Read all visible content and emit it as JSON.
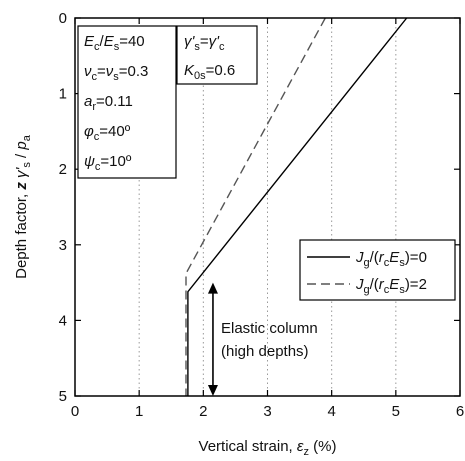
{
  "chart_data": {
    "type": "line",
    "x_axis": {
      "label_prefix": "Vertical strain, ",
      "label_symbol": "ε",
      "label_symbol_sub": "z",
      "label_suffix": " (%)",
      "range": [
        0,
        6
      ],
      "ticks": [
        "0",
        "1",
        "2",
        "3",
        "4",
        "5",
        "6"
      ],
      "grid": "vertical dotted"
    },
    "y_axis": {
      "label_prefix": "Depth factor, ",
      "label_z": "z",
      "label_gamma": "γ'",
      "label_gamma_sub": "s",
      "label_slash": " / ",
      "label_p": "p",
      "label_p_sub": "a",
      "range": [
        0,
        5
      ],
      "inverted": true,
      "ticks": [
        "0",
        "1",
        "2",
        "3",
        "4",
        "5"
      ]
    },
    "series": [
      {
        "legend_main": "J",
        "legend_sub1": "g",
        "legend_mid": "/(",
        "legend_r": "r",
        "legend_sub2": "c",
        "legend_E": "E",
        "legend_sub3": "s",
        "legend_value": ")=0",
        "style": "solid",
        "color": "#000000",
        "points": [
          [
            5.17,
            0
          ],
          [
            1.76,
            3.62
          ],
          [
            1.76,
            5
          ]
        ]
      },
      {
        "legend_main": "J",
        "legend_sub1": "g",
        "legend_mid": "/(",
        "legend_r": "r",
        "legend_sub2": "c",
        "legend_E": "E",
        "legend_sub3": "s",
        "legend_value": ")=2",
        "style": "dashed",
        "color": "#555555",
        "points": [
          [
            3.9,
            0
          ],
          [
            1.73,
            3.38
          ],
          [
            1.73,
            5
          ]
        ]
      }
    ],
    "parameters_box": [
      {
        "sym": "E",
        "sub": "c",
        "mid": "/",
        "sym2": "E",
        "sub2": "s",
        "value": "=40"
      },
      {
        "sym": "ν",
        "sub": "c",
        "mid": "=",
        "sym2": "ν",
        "sub2": "s",
        "value": "=0.3"
      },
      {
        "sym": "a",
        "sub": "r",
        "mid": "",
        "sym2": "",
        "sub2": "",
        "value": "=0.11"
      },
      {
        "sym": "φ",
        "sub": "c",
        "mid": "",
        "sym2": "",
        "sub2": "",
        "value": "=40º"
      },
      {
        "sym": "ψ",
        "sub": "c",
        "mid": "",
        "sym2": "",
        "sub2": "",
        "value": "=10º"
      }
    ],
    "soil_box": [
      {
        "sym": "γ'",
        "sub": "s",
        "mid": "=",
        "sym2": "γ'",
        "sub2": "c",
        "value": ""
      },
      {
        "sym": "K",
        "sub": "0s",
        "mid": "",
        "sym2": "",
        "sub2": "",
        "value": "=0.6"
      }
    ],
    "annotation": {
      "line1": "Elastic column",
      "line2": "(high depths)",
      "arrow_x": 2.15,
      "arrow_y_from": 3.5,
      "arrow_y_to": 5
    }
  }
}
